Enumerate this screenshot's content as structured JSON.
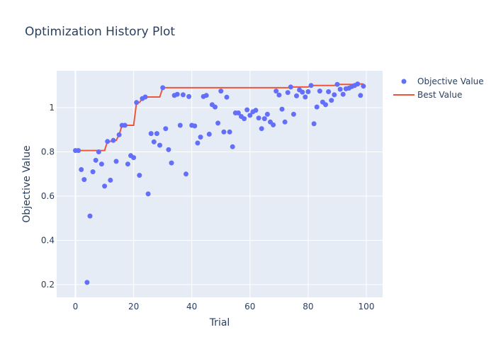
{
  "chart_data": {
    "type": "scatter",
    "title": "Optimization History Plot",
    "xlabel": "Trial",
    "ylabel": "Objective Value",
    "xlim": [
      -6,
      105
    ],
    "ylim": [
      0.15,
      1.16
    ],
    "xticks": [
      0,
      20,
      40,
      60,
      80,
      100
    ],
    "yticks": [
      0.2,
      0.4,
      0.6,
      0.8,
      1
    ],
    "ytick_labels": [
      "0.2",
      "0.4",
      "0.6",
      "0.8",
      "1"
    ],
    "grid": true,
    "legend_position": "right",
    "legend": [
      "Objective Value",
      "Best Value"
    ],
    "colors": {
      "objective": "#636efa",
      "best": "#ef553b",
      "plot_bg": "#e5ecf6",
      "grid": "#ffffff",
      "text": "#2a3f5f"
    },
    "series": [
      {
        "name": "Objective Value",
        "mode": "markers",
        "x": [
          0,
          1,
          2,
          3,
          4,
          5,
          6,
          7,
          8,
          9,
          10,
          11,
          12,
          13,
          14,
          15,
          16,
          17,
          18,
          19,
          20,
          21,
          22,
          23,
          24,
          25,
          26,
          27,
          28,
          29,
          30,
          31,
          32,
          33,
          34,
          35,
          36,
          37,
          38,
          39,
          40,
          41,
          42,
          43,
          44,
          45,
          46,
          47,
          48,
          49,
          50,
          51,
          52,
          53,
          54,
          55,
          56,
          57,
          58,
          59,
          60,
          61,
          62,
          63,
          64,
          65,
          66,
          67,
          68,
          69,
          70,
          71,
          72,
          73,
          74,
          75,
          76,
          77,
          78,
          79,
          80,
          81,
          82,
          83,
          84,
          85,
          86,
          87,
          88,
          89,
          90,
          91,
          92,
          93,
          94,
          95,
          96,
          97,
          98,
          99
        ],
        "values": [
          0.806,
          0.806,
          0.72,
          0.675,
          0.21,
          0.51,
          0.71,
          0.762,
          0.8,
          0.745,
          0.645,
          0.847,
          0.672,
          0.852,
          0.757,
          0.877,
          0.92,
          0.92,
          0.745,
          0.783,
          0.774,
          1.023,
          0.694,
          1.041,
          1.048,
          0.61,
          0.883,
          0.845,
          0.883,
          0.83,
          1.09,
          0.905,
          0.81,
          0.75,
          1.055,
          1.06,
          0.92,
          1.058,
          0.7,
          1.05,
          0.92,
          0.917,
          0.84,
          0.867,
          1.05,
          1.055,
          0.88,
          1.013,
          1.003,
          0.93,
          1.075,
          0.89,
          1.047,
          0.89,
          0.823,
          0.976,
          0.976,
          0.96,
          0.95,
          0.99,
          0.965,
          0.981,
          0.988,
          0.953,
          0.905,
          0.95,
          0.97,
          0.935,
          0.922,
          1.075,
          1.057,
          0.993,
          0.935,
          1.068,
          1.093,
          0.97,
          1.053,
          1.08,
          1.07,
          1.048,
          1.072,
          1.1,
          0.927,
          1.003,
          1.075,
          1.025,
          1.013,
          1.072,
          1.033,
          1.058,
          1.105,
          1.083,
          1.06,
          1.085,
          1.088,
          1.095,
          1.1,
          1.107,
          1.055,
          1.097
        ]
      },
      {
        "name": "Best Value",
        "mode": "lines",
        "x": [
          0,
          1,
          2,
          3,
          4,
          5,
          6,
          7,
          8,
          9,
          10,
          11,
          12,
          13,
          14,
          15,
          16,
          17,
          18,
          19,
          20,
          21,
          22,
          23,
          24,
          25,
          26,
          27,
          28,
          29,
          30,
          31,
          32,
          33,
          34,
          35,
          36,
          37,
          38,
          39,
          40,
          41,
          42,
          43,
          44,
          45,
          46,
          47,
          48,
          49,
          50,
          51,
          52,
          53,
          54,
          55,
          56,
          57,
          58,
          59,
          60,
          61,
          62,
          63,
          64,
          65,
          66,
          67,
          68,
          69,
          70,
          71,
          72,
          73,
          74,
          75,
          76,
          77,
          78,
          79,
          80,
          81,
          82,
          83,
          84,
          85,
          86,
          87,
          88,
          89,
          90,
          91,
          92,
          93,
          94,
          95,
          96,
          97,
          98,
          99
        ],
        "values": [
          0.806,
          0.806,
          0.806,
          0.806,
          0.806,
          0.806,
          0.806,
          0.806,
          0.806,
          0.806,
          0.806,
          0.847,
          0.847,
          0.852,
          0.852,
          0.877,
          0.92,
          0.92,
          0.92,
          0.92,
          0.92,
          1.023,
          1.023,
          1.041,
          1.048,
          1.048,
          1.048,
          1.048,
          1.048,
          1.048,
          1.09,
          1.09,
          1.09,
          1.09,
          1.09,
          1.09,
          1.09,
          1.09,
          1.09,
          1.09,
          1.09,
          1.09,
          1.09,
          1.09,
          1.09,
          1.09,
          1.09,
          1.09,
          1.09,
          1.09,
          1.09,
          1.09,
          1.09,
          1.09,
          1.09,
          1.09,
          1.09,
          1.09,
          1.09,
          1.09,
          1.09,
          1.09,
          1.09,
          1.09,
          1.09,
          1.09,
          1.09,
          1.09,
          1.09,
          1.09,
          1.09,
          1.09,
          1.09,
          1.09,
          1.093,
          1.093,
          1.093,
          1.093,
          1.093,
          1.093,
          1.093,
          1.1,
          1.1,
          1.1,
          1.1,
          1.1,
          1.1,
          1.1,
          1.1,
          1.1,
          1.105,
          1.105,
          1.105,
          1.105,
          1.105,
          1.105,
          1.105,
          1.107,
          1.107,
          1.107
        ]
      }
    ]
  }
}
